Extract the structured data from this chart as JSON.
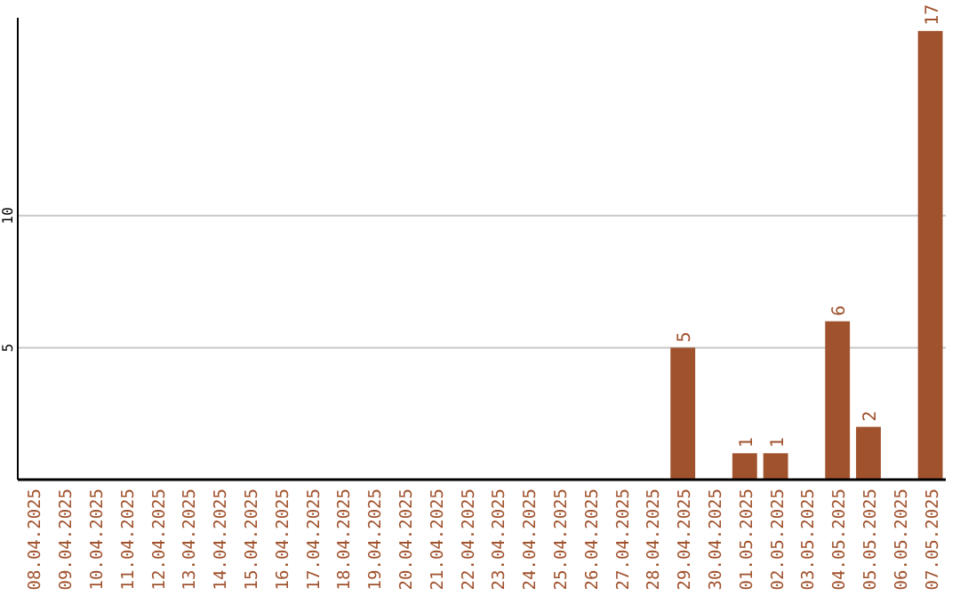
{
  "chart_data": {
    "type": "bar",
    "categories": [
      "08.04.2025",
      "09.04.2025",
      "10.04.2025",
      "11.04.2025",
      "12.04.2025",
      "13.04.2025",
      "14.04.2025",
      "15.04.2025",
      "16.04.2025",
      "17.04.2025",
      "18.04.2025",
      "19.04.2025",
      "20.04.2025",
      "21.04.2025",
      "22.04.2025",
      "23.04.2025",
      "24.04.2025",
      "25.04.2025",
      "26.04.2025",
      "27.04.2025",
      "28.04.2025",
      "29.04.2025",
      "30.04.2025",
      "01.05.2025",
      "02.05.2025",
      "03.05.2025",
      "04.05.2025",
      "05.05.2025",
      "06.05.2025",
      "07.05.2025"
    ],
    "values": [
      0,
      0,
      0,
      0,
      0,
      0,
      0,
      0,
      0,
      0,
      0,
      0,
      0,
      0,
      0,
      0,
      0,
      0,
      0,
      0,
      0,
      5,
      0,
      1,
      1,
      0,
      6,
      2,
      0,
      17
    ],
    "value_labels": [
      null,
      null,
      null,
      null,
      null,
      null,
      null,
      null,
      null,
      null,
      null,
      null,
      null,
      null,
      null,
      null,
      null,
      null,
      null,
      null,
      null,
      "5",
      null,
      "1",
      "1",
      null,
      "6",
      "2",
      null,
      "17"
    ],
    "color": "#a0522d",
    "ylim": [
      0,
      17.5
    ],
    "yticks": [
      5,
      10
    ],
    "grid": "y"
  }
}
